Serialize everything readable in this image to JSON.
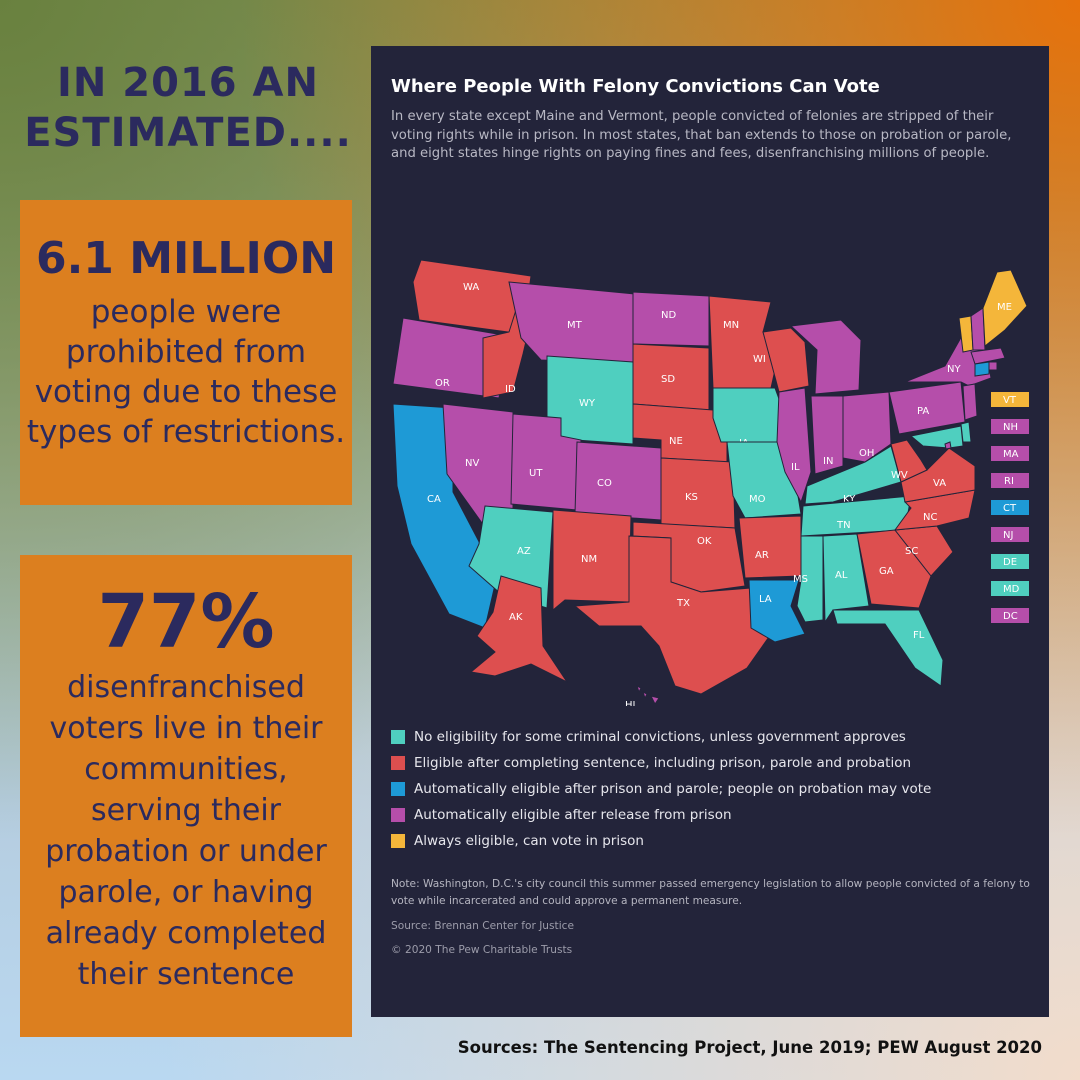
{
  "headline": "IN 2016 AN ESTIMATED....",
  "stat_boxes": [
    {
      "figure": "6.1 MILLION",
      "text": "people were prohibited from voting due to these types of restrictions."
    },
    {
      "figure": "77%",
      "text": "disenfranchised voters live in their communities, serving their probation or under parole, or having already completed their sentence"
    }
  ],
  "panel": {
    "title": "Where People With Felony Convictions Can Vote",
    "description": "In every state except Maine and Vermont, people convicted of felonies are stripped of their voting rights while in prison. In most states, that ban extends to those on probation or parole, and eight states hinge rights on paying fines and fees, disenfranchising millions of people.",
    "note": "Note: Washington, D.C.'s city council this summer passed emergency legislation to allow people convicted of a felony to vote while incarcerated and could approve a permanent measure.",
    "source": "Source: Brennan Center for Justice",
    "copyright": "© 2020 The Pew Charitable Trusts"
  },
  "legend": [
    {
      "category": "no_eligibility",
      "label": "No eligibility for some criminal convictions, unless government approves",
      "color": "#4fcfbf"
    },
    {
      "category": "after_sentence",
      "label": "Eligible after completing sentence, including prison, parole and probation",
      "color": "#dd4f4f"
    },
    {
      "category": "after_prison_parole",
      "label": "Automatically eligible after prison and parole; people on probation may vote",
      "color": "#1e9ad6"
    },
    {
      "category": "after_release",
      "label": "Automatically eligible after release from prison",
      "color": "#b54eaa"
    },
    {
      "category": "always",
      "label": "Always eligible, can vote in prison",
      "color": "#f4b63a"
    }
  ],
  "map": {
    "states": [
      {
        "abbr": "WA",
        "category": "after_sentence"
      },
      {
        "abbr": "OR",
        "category": "after_release"
      },
      {
        "abbr": "CA",
        "category": "after_prison_parole"
      },
      {
        "abbr": "NV",
        "category": "after_release"
      },
      {
        "abbr": "ID",
        "category": "after_sentence"
      },
      {
        "abbr": "MT",
        "category": "after_release"
      },
      {
        "abbr": "WY",
        "category": "no_eligibility"
      },
      {
        "abbr": "UT",
        "category": "after_release"
      },
      {
        "abbr": "CO",
        "category": "after_release"
      },
      {
        "abbr": "AZ",
        "category": "no_eligibility"
      },
      {
        "abbr": "NM",
        "category": "after_sentence"
      },
      {
        "abbr": "ND",
        "category": "after_release"
      },
      {
        "abbr": "SD",
        "category": "after_sentence"
      },
      {
        "abbr": "NE",
        "category": "after_sentence"
      },
      {
        "abbr": "KS",
        "category": "after_sentence"
      },
      {
        "abbr": "OK",
        "category": "after_sentence"
      },
      {
        "abbr": "TX",
        "category": "after_sentence"
      },
      {
        "abbr": "MN",
        "category": "after_sentence"
      },
      {
        "abbr": "IA",
        "category": "no_eligibility"
      },
      {
        "abbr": "MO",
        "category": "no_eligibility"
      },
      {
        "abbr": "AR",
        "category": "after_sentence"
      },
      {
        "abbr": "LA",
        "category": "after_prison_parole"
      },
      {
        "abbr": "WI",
        "category": "after_sentence"
      },
      {
        "abbr": "IL",
        "category": "after_release"
      },
      {
        "abbr": "MI",
        "category": "after_release"
      },
      {
        "abbr": "IN",
        "category": "after_release"
      },
      {
        "abbr": "OH",
        "category": "after_release"
      },
      {
        "abbr": "KY",
        "category": "no_eligibility"
      },
      {
        "abbr": "TN",
        "category": "no_eligibility"
      },
      {
        "abbr": "MS",
        "category": "no_eligibility"
      },
      {
        "abbr": "AL",
        "category": "no_eligibility"
      },
      {
        "abbr": "GA",
        "category": "after_sentence"
      },
      {
        "abbr": "FL",
        "category": "no_eligibility"
      },
      {
        "abbr": "SC",
        "category": "after_sentence"
      },
      {
        "abbr": "NC",
        "category": "after_sentence"
      },
      {
        "abbr": "VA",
        "category": "after_sentence"
      },
      {
        "abbr": "WV",
        "category": "after_sentence"
      },
      {
        "abbr": "PA",
        "category": "after_release"
      },
      {
        "abbr": "NY",
        "category": "after_release"
      },
      {
        "abbr": "ME",
        "category": "always"
      },
      {
        "abbr": "AK",
        "category": "after_sentence"
      },
      {
        "abbr": "HI",
        "category": "after_release"
      }
    ],
    "small_states": [
      {
        "abbr": "VT",
        "category": "always"
      },
      {
        "abbr": "NH",
        "category": "after_release"
      },
      {
        "abbr": "MA",
        "category": "after_release"
      },
      {
        "abbr": "RI",
        "category": "after_release"
      },
      {
        "abbr": "CT",
        "category": "after_prison_parole"
      },
      {
        "abbr": "NJ",
        "category": "after_release"
      },
      {
        "abbr": "DE",
        "category": "no_eligibility"
      },
      {
        "abbr": "MD",
        "category": "no_eligibility"
      },
      {
        "abbr": "DC",
        "category": "after_release"
      }
    ]
  },
  "footer": "Sources: The Sentencing Project, June 2019; PEW August 2020"
}
